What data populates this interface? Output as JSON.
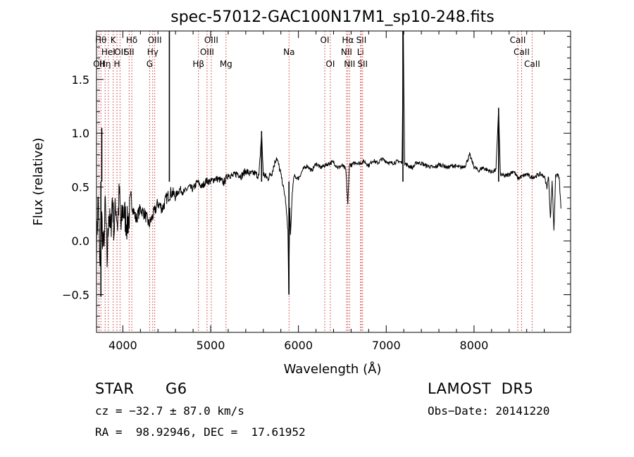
{
  "chart_data": {
    "type": "line",
    "title": "spec-57012-GAC100N17M1_sp10-248.fits",
    "xlabel": "Wavelength (Å)",
    "ylabel": "Flux (relative)",
    "xlim": [
      3700,
      9100
    ],
    "ylim": [
      -0.85,
      1.95
    ],
    "x_ticks": [
      4000,
      5000,
      6000,
      7000,
      8000
    ],
    "y_ticks": [
      -0.5,
      0.0,
      0.5,
      1.0,
      1.5
    ],
    "y_tick_labels": [
      "−0.5",
      "0.0",
      "0.5",
      "1.0",
      "1.5"
    ],
    "grid": false,
    "legend": "none",
    "series": [
      {
        "color": "#000000",
        "x": [
          3700,
          3720,
          3740,
          3760,
          3780,
          3800,
          3820,
          3840,
          3860,
          3880,
          3900,
          3920,
          3940,
          3960,
          3980,
          4000,
          4050,
          4100,
          4150,
          4200,
          4250,
          4300,
          4350,
          4400,
          4450,
          4500,
          4550,
          4600,
          4650,
          4700,
          4750,
          4800,
          4850,
          4900,
          4950,
          5000,
          5050,
          5100,
          5150,
          5200,
          5250,
          5300,
          5350,
          5400,
          5450,
          5500,
          5550,
          5580,
          5600,
          5650,
          5700,
          5750,
          5800,
          5850,
          5880,
          5890,
          5900,
          5910,
          5930,
          5950,
          6000,
          6050,
          6100,
          6150,
          6200,
          6250,
          6300,
          6350,
          6400,
          6450,
          6500,
          6540,
          6563,
          6580,
          6600,
          6650,
          6700,
          6750,
          6800,
          6850,
          6900,
          6950,
          7000,
          7050,
          7100,
          7150,
          7180,
          7195,
          7210,
          7250,
          7300,
          7350,
          7400,
          7450,
          7500,
          7550,
          7600,
          7650,
          7700,
          7750,
          7800,
          7850,
          7900,
          7950,
          8000,
          8050,
          8100,
          8150,
          8200,
          8250,
          8280,
          8300,
          8350,
          8400,
          8450,
          8500,
          8550,
          8600,
          8650,
          8700,
          8750,
          8800,
          8830,
          8850,
          8870,
          8890,
          8910,
          8930,
          8950,
          8970,
          8990
        ],
        "y": [
          -0.05,
          0.4,
          -0.3,
          0.2,
          -0.1,
          0.35,
          -0.2,
          0.3,
          0.05,
          0.4,
          0.1,
          0.35,
          0.15,
          0.45,
          0.1,
          0.3,
          0.15,
          0.35,
          0.2,
          0.3,
          0.25,
          0.15,
          0.25,
          0.35,
          0.3,
          0.4,
          0.45,
          0.42,
          0.48,
          0.45,
          0.5,
          0.48,
          0.55,
          0.5,
          0.56,
          0.55,
          0.58,
          0.57,
          0.54,
          0.62,
          0.6,
          0.63,
          0.6,
          0.65,
          0.62,
          0.63,
          0.6,
          1.0,
          0.62,
          0.58,
          0.64,
          0.78,
          0.62,
          0.4,
          0.1,
          -0.5,
          0.3,
          0.05,
          0.45,
          0.6,
          0.58,
          0.66,
          0.7,
          0.65,
          0.72,
          0.68,
          0.7,
          0.72,
          0.73,
          0.68,
          0.7,
          0.66,
          0.33,
          0.72,
          0.7,
          0.73,
          0.72,
          0.74,
          0.7,
          0.75,
          0.72,
          0.76,
          0.74,
          0.72,
          0.73,
          0.74,
          0.72,
          1.95,
          0.72,
          0.7,
          0.68,
          0.73,
          0.72,
          0.7,
          0.69,
          0.68,
          0.71,
          0.7,
          0.68,
          0.7,
          0.69,
          0.68,
          0.7,
          0.8,
          0.69,
          0.65,
          0.68,
          0.66,
          0.64,
          0.66,
          1.23,
          0.62,
          0.6,
          0.62,
          0.65,
          0.58,
          0.6,
          0.62,
          0.59,
          0.6,
          0.62,
          0.6,
          0.5,
          0.6,
          0.2,
          0.56,
          0.1,
          0.6,
          0.62,
          0.58,
          0.3
        ],
        "spikes": [
          {
            "x": 4530,
            "y": 1.95
          },
          {
            "x": 5580,
            "y": 1.02
          },
          {
            "x": 5892,
            "y": -0.5
          },
          {
            "x": 7190,
            "y": 1.95
          },
          {
            "x": 8280,
            "y": 1.23
          },
          {
            "x": 3750,
            "y": -0.52
          },
          {
            "x": 3760,
            "y": 1.05
          }
        ]
      }
    ],
    "line_markers": [
      {
        "x": 3727,
        "label": "OII",
        "row": 2
      },
      {
        "x": 3750,
        "label": "Hθ",
        "row": 0
      },
      {
        "x": 3798,
        "label": "Hη",
        "row": 2
      },
      {
        "x": 3835,
        "label": "HeI",
        "row": 1
      },
      {
        "x": 3890,
        "label": "K",
        "row": 0
      },
      {
        "x": 3933,
        "label": "H",
        "row": 2
      },
      {
        "x": 3968,
        "label": "OII",
        "row": 1
      },
      {
        "x": 4072,
        "label": "SII",
        "row": 1
      },
      {
        "x": 4102,
        "label": "Hδ",
        "row": 0
      },
      {
        "x": 4305,
        "label": "G",
        "row": 2
      },
      {
        "x": 4340,
        "label": "Hγ",
        "row": 1
      },
      {
        "x": 4363,
        "label": "OIII",
        "row": 0
      },
      {
        "x": 4861,
        "label": "Hβ",
        "row": 2
      },
      {
        "x": 4959,
        "label": "OIII",
        "row": 1
      },
      {
        "x": 5007,
        "label": "OIII",
        "row": 0
      },
      {
        "x": 5175,
        "label": "Mg",
        "row": 2
      },
      {
        "x": 5893,
        "label": "Na",
        "row": 1
      },
      {
        "x": 6300,
        "label": "OI",
        "row": 0
      },
      {
        "x": 6363,
        "label": "OI",
        "row": 2
      },
      {
        "x": 6548,
        "label": "NII",
        "row": 1
      },
      {
        "x": 6563,
        "label": "Hα",
        "row": 0
      },
      {
        "x": 6583,
        "label": "NII",
        "row": 2
      },
      {
        "x": 6707,
        "label": "Li",
        "row": 1
      },
      {
        "x": 6716,
        "label": "SII",
        "row": 0
      },
      {
        "x": 6731,
        "label": "SII",
        "row": 2
      },
      {
        "x": 8498,
        "label": "CaII",
        "row": 0
      },
      {
        "x": 8542,
        "label": "CaII",
        "row": 1
      },
      {
        "x": 8662,
        "label": "CaII",
        "row": 2
      }
    ]
  },
  "info": {
    "class": "STAR",
    "subclass": "G6",
    "survey": "LAMOST  DR5",
    "cz": "cz = −32.7 ± 87.0 km/s",
    "obs_date": "Obs−Date: 20141220",
    "coords": "RA =  98.92946, DEC =  17.61952"
  }
}
